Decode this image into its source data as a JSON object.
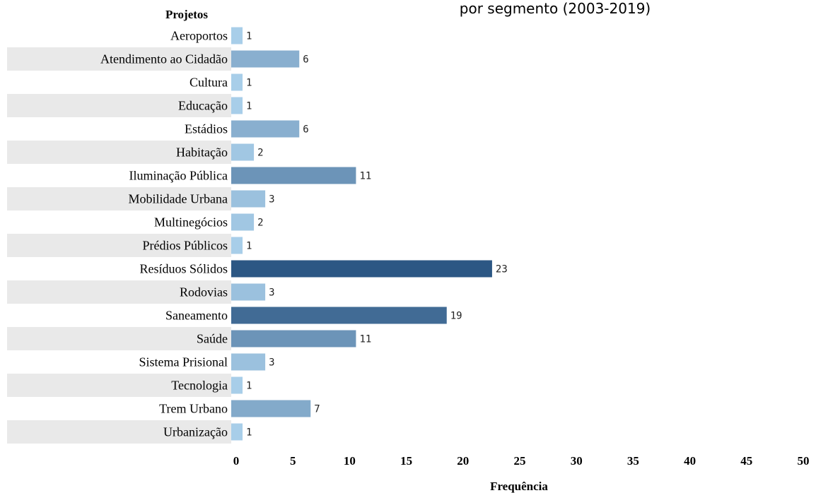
{
  "chart_data": {
    "type": "bar",
    "orientation": "horizontal",
    "title_fragment": "por segmento (2003-2019)",
    "ylabel": "Projetos",
    "xlabel": "Frequência",
    "xlim": [
      0,
      50
    ],
    "xticks": [
      0,
      5,
      10,
      15,
      20,
      25,
      30,
      35,
      40,
      45,
      50
    ],
    "grid": false,
    "color_scale": [
      "#b0d5ef",
      "#2c5784"
    ],
    "categories": [
      "Aeroportos",
      "Atendimento ao Cidadão",
      "Cultura",
      "Educação",
      "Estádios",
      "Habitação",
      "Iluminação Pública",
      "Mobilidade Urbana",
      "Multinegócios",
      "Prédios Públicos",
      "Resíduos Sólidos",
      "Rodovias",
      "Saneamento",
      "Saúde",
      "Sistema Prisional",
      "Tecnologia",
      "Trem Urbano",
      "Urbanização"
    ],
    "values": [
      1,
      6,
      1,
      1,
      6,
      2,
      11,
      3,
      2,
      1,
      23,
      3,
      19,
      11,
      3,
      1,
      7,
      1
    ]
  }
}
